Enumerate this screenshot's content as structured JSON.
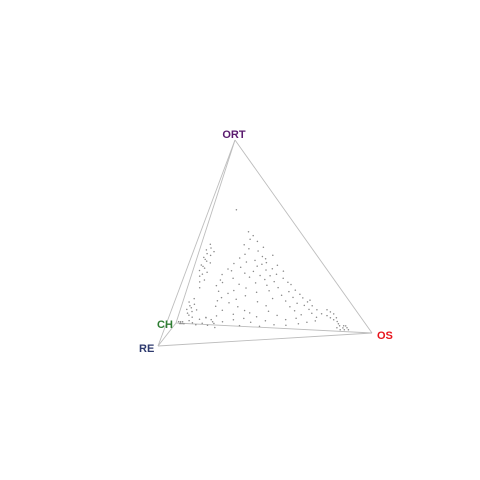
{
  "chart_data": {
    "type": "scatter",
    "subtype": "quaternary-tetrahedron",
    "vertices": [
      {
        "label": "ORT",
        "color": "#5a1a6e"
      },
      {
        "label": "OS",
        "color": "#e8141c"
      },
      {
        "label": "CH",
        "color": "#2e7d32"
      },
      {
        "label": "RE",
        "color": "#2e3a6e"
      }
    ],
    "axis_color": "#bdbdbd",
    "point_color": "#8a8a8a",
    "points": [
      [
        0.42,
        0.3,
        0.2,
        0.08
      ],
      [
        0.47,
        0.28,
        0.18,
        0.07
      ],
      [
        0.39,
        0.33,
        0.21,
        0.07
      ],
      [
        0.44,
        0.32,
        0.17,
        0.07
      ],
      [
        0.36,
        0.36,
        0.2,
        0.08
      ],
      [
        0.4,
        0.38,
        0.15,
        0.07
      ],
      [
        0.33,
        0.4,
        0.18,
        0.09
      ],
      [
        0.35,
        0.42,
        0.14,
        0.09
      ],
      [
        0.3,
        0.43,
        0.19,
        0.08
      ],
      [
        0.32,
        0.46,
        0.13,
        0.09
      ],
      [
        0.28,
        0.47,
        0.17,
        0.08
      ],
      [
        0.26,
        0.5,
        0.16,
        0.08
      ],
      [
        0.25,
        0.52,
        0.14,
        0.09
      ],
      [
        0.22,
        0.55,
        0.15,
        0.08
      ],
      [
        0.2,
        0.58,
        0.13,
        0.09
      ],
      [
        0.18,
        0.6,
        0.14,
        0.08
      ],
      [
        0.16,
        0.63,
        0.13,
        0.08
      ],
      [
        0.14,
        0.66,
        0.12,
        0.08
      ],
      [
        0.12,
        0.69,
        0.11,
        0.08
      ],
      [
        0.1,
        0.72,
        0.1,
        0.08
      ],
      [
        0.09,
        0.75,
        0.09,
        0.07
      ],
      [
        0.08,
        0.77,
        0.08,
        0.07
      ],
      [
        0.07,
        0.79,
        0.07,
        0.07
      ],
      [
        0.06,
        0.81,
        0.07,
        0.06
      ],
      [
        0.1,
        0.78,
        0.06,
        0.06
      ],
      [
        0.08,
        0.8,
        0.06,
        0.06
      ],
      [
        0.12,
        0.74,
        0.08,
        0.06
      ],
      [
        0.11,
        0.76,
        0.07,
        0.06
      ],
      [
        0.36,
        0.26,
        0.28,
        0.1
      ],
      [
        0.33,
        0.24,
        0.33,
        0.1
      ],
      [
        0.3,
        0.27,
        0.33,
        0.1
      ],
      [
        0.28,
        0.3,
        0.32,
        0.1
      ],
      [
        0.31,
        0.2,
        0.38,
        0.11
      ],
      [
        0.27,
        0.22,
        0.4,
        0.11
      ],
      [
        0.24,
        0.26,
        0.39,
        0.11
      ],
      [
        0.22,
        0.3,
        0.38,
        0.1
      ],
      [
        0.25,
        0.34,
        0.31,
        0.1
      ],
      [
        0.2,
        0.36,
        0.34,
        0.1
      ],
      [
        0.18,
        0.31,
        0.4,
        0.11
      ],
      [
        0.16,
        0.27,
        0.45,
        0.12
      ],
      [
        0.19,
        0.22,
        0.46,
        0.13
      ],
      [
        0.14,
        0.24,
        0.49,
        0.13
      ],
      [
        0.12,
        0.29,
        0.47,
        0.12
      ],
      [
        0.1,
        0.33,
        0.46,
        0.11
      ],
      [
        0.15,
        0.38,
        0.37,
        0.1
      ],
      [
        0.13,
        0.43,
        0.34,
        0.1
      ],
      [
        0.17,
        0.45,
        0.29,
        0.09
      ],
      [
        0.21,
        0.42,
        0.28,
        0.09
      ],
      [
        0.24,
        0.4,
        0.27,
        0.09
      ],
      [
        0.27,
        0.38,
        0.26,
        0.09
      ],
      [
        0.29,
        0.35,
        0.27,
        0.09
      ],
      [
        0.23,
        0.46,
        0.22,
        0.09
      ],
      [
        0.19,
        0.49,
        0.23,
        0.09
      ],
      [
        0.16,
        0.52,
        0.23,
        0.09
      ],
      [
        0.13,
        0.55,
        0.23,
        0.09
      ],
      [
        0.11,
        0.58,
        0.22,
        0.09
      ],
      [
        0.09,
        0.62,
        0.2,
        0.09
      ],
      [
        0.07,
        0.6,
        0.24,
        0.09
      ],
      [
        0.06,
        0.55,
        0.3,
        0.09
      ],
      [
        0.08,
        0.5,
        0.33,
        0.09
      ],
      [
        0.1,
        0.45,
        0.36,
        0.09
      ],
      [
        0.05,
        0.45,
        0.4,
        0.1
      ],
      [
        0.07,
        0.4,
        0.42,
        0.11
      ],
      [
        0.09,
        0.36,
        0.43,
        0.12
      ],
      [
        0.06,
        0.34,
        0.47,
        0.13
      ],
      [
        0.08,
        0.28,
        0.51,
        0.13
      ],
      [
        0.05,
        0.29,
        0.53,
        0.13
      ],
      [
        0.1,
        0.22,
        0.53,
        0.15
      ],
      [
        0.07,
        0.2,
        0.57,
        0.16
      ],
      [
        0.12,
        0.18,
        0.55,
        0.15
      ],
      [
        0.15,
        0.18,
        0.52,
        0.15
      ],
      [
        0.04,
        0.24,
        0.56,
        0.16
      ],
      [
        0.05,
        0.18,
        0.6,
        0.17
      ],
      [
        0.03,
        0.2,
        0.6,
        0.17
      ],
      [
        0.06,
        0.15,
        0.62,
        0.17
      ],
      [
        0.2,
        0.17,
        0.49,
        0.14
      ],
      [
        0.23,
        0.15,
        0.48,
        0.14
      ],
      [
        0.26,
        0.16,
        0.45,
        0.13
      ],
      [
        0.29,
        0.16,
        0.42,
        0.13
      ],
      [
        0.32,
        0.18,
        0.38,
        0.12
      ],
      [
        0.35,
        0.2,
        0.34,
        0.11
      ],
      [
        0.38,
        0.22,
        0.3,
        0.1
      ],
      [
        0.4,
        0.24,
        0.27,
        0.09
      ],
      [
        0.43,
        0.25,
        0.24,
        0.08
      ],
      [
        0.45,
        0.22,
        0.25,
        0.08
      ],
      [
        0.48,
        0.24,
        0.21,
        0.07
      ],
      [
        0.5,
        0.25,
        0.18,
        0.07
      ],
      [
        0.52,
        0.22,
        0.19,
        0.07
      ],
      [
        0.37,
        0.3,
        0.24,
        0.09
      ],
      [
        0.34,
        0.32,
        0.25,
        0.09
      ],
      [
        0.31,
        0.31,
        0.29,
        0.09
      ],
      [
        0.26,
        0.43,
        0.23,
        0.08
      ],
      [
        0.29,
        0.4,
        0.23,
        0.08
      ],
      [
        0.32,
        0.37,
        0.23,
        0.08
      ],
      [
        0.35,
        0.34,
        0.23,
        0.08
      ],
      [
        0.38,
        0.35,
        0.19,
        0.08
      ],
      [
        0.21,
        0.52,
        0.19,
        0.08
      ],
      [
        0.18,
        0.55,
        0.19,
        0.08
      ],
      [
        0.15,
        0.58,
        0.19,
        0.08
      ],
      [
        0.17,
        0.64,
        0.11,
        0.08
      ],
      [
        0.14,
        0.62,
        0.16,
        0.08
      ],
      [
        0.12,
        0.65,
        0.15,
        0.08
      ],
      [
        0.1,
        0.67,
        0.15,
        0.08
      ],
      [
        0.08,
        0.7,
        0.14,
        0.08
      ],
      [
        0.06,
        0.7,
        0.16,
        0.08
      ],
      [
        0.05,
        0.66,
        0.21,
        0.08
      ],
      [
        0.04,
        0.62,
        0.26,
        0.08
      ],
      [
        0.03,
        0.56,
        0.32,
        0.09
      ],
      [
        0.03,
        0.5,
        0.37,
        0.1
      ],
      [
        0.02,
        0.43,
        0.44,
        0.11
      ],
      [
        0.04,
        0.38,
        0.46,
        0.12
      ],
      [
        0.02,
        0.33,
        0.52,
        0.13
      ],
      [
        0.02,
        0.86,
        0.04,
        0.08
      ],
      [
        0.03,
        0.85,
        0.04,
        0.08
      ],
      [
        0.03,
        0.87,
        0.03,
        0.07
      ],
      [
        0.04,
        0.85,
        0.04,
        0.07
      ],
      [
        0.02,
        0.84,
        0.05,
        0.09
      ],
      [
        0.04,
        0.83,
        0.05,
        0.08
      ],
      [
        0.03,
        0.82,
        0.06,
        0.09
      ],
      [
        0.05,
        0.82,
        0.06,
        0.07
      ],
      [
        0.02,
        0.88,
        0.03,
        0.07
      ],
      [
        0.04,
        0.86,
        0.03,
        0.07
      ],
      [
        0.02,
        0.03,
        0.78,
        0.17
      ],
      [
        0.02,
        0.04,
        0.77,
        0.17
      ],
      [
        0.03,
        0.03,
        0.77,
        0.17
      ],
      [
        0.02,
        0.03,
        0.79,
        0.16
      ],
      [
        0.03,
        0.04,
        0.76,
        0.17
      ],
      [
        0.02,
        0.05,
        0.76,
        0.17
      ],
      [
        0.03,
        0.02,
        0.78,
        0.17
      ],
      [
        0.3,
        0.06,
        0.32,
        0.32
      ],
      [
        0.33,
        0.05,
        0.3,
        0.32
      ],
      [
        0.36,
        0.05,
        0.27,
        0.32
      ],
      [
        0.39,
        0.06,
        0.24,
        0.31
      ],
      [
        0.34,
        0.07,
        0.3,
        0.29
      ],
      [
        0.31,
        0.07,
        0.31,
        0.31
      ],
      [
        0.38,
        0.07,
        0.25,
        0.3
      ],
      [
        0.42,
        0.06,
        0.22,
        0.3
      ],
      [
        0.27,
        0.07,
        0.33,
        0.33
      ],
      [
        0.35,
        0.06,
        0.29,
        0.3
      ],
      [
        0.4,
        0.05,
        0.24,
        0.31
      ],
      [
        0.44,
        0.05,
        0.21,
        0.3
      ],
      [
        0.24,
        0.08,
        0.34,
        0.34
      ],
      [
        0.28,
        0.09,
        0.31,
        0.32
      ],
      [
        0.45,
        0.07,
        0.19,
        0.29
      ],
      [
        0.41,
        0.08,
        0.22,
        0.29
      ],
      [
        0.32,
        0.09,
        0.29,
        0.3
      ],
      [
        0.37,
        0.09,
        0.25,
        0.29
      ],
      [
        0.43,
        0.09,
        0.2,
        0.28
      ],
      [
        0.47,
        0.06,
        0.18,
        0.29
      ],
      [
        0.1,
        0.06,
        0.5,
        0.34
      ],
      [
        0.12,
        0.05,
        0.49,
        0.34
      ],
      [
        0.14,
        0.06,
        0.46,
        0.34
      ],
      [
        0.11,
        0.08,
        0.47,
        0.34
      ],
      [
        0.13,
        0.07,
        0.46,
        0.34
      ],
      [
        0.09,
        0.07,
        0.5,
        0.34
      ],
      [
        0.15,
        0.08,
        0.43,
        0.34
      ],
      [
        0.16,
        0.05,
        0.45,
        0.34
      ],
      [
        0.08,
        0.09,
        0.49,
        0.34
      ],
      [
        0.12,
        0.1,
        0.44,
        0.34
      ],
      [
        0.18,
        0.07,
        0.41,
        0.34
      ],
      [
        0.06,
        0.08,
        0.52,
        0.34
      ],
      [
        0.04,
        0.12,
        0.5,
        0.34
      ],
      [
        0.05,
        0.15,
        0.46,
        0.34
      ],
      [
        0.04,
        0.18,
        0.44,
        0.34
      ],
      [
        0.06,
        0.2,
        0.4,
        0.34
      ],
      [
        0.03,
        0.22,
        0.41,
        0.34
      ],
      [
        0.05,
        0.1,
        0.51,
        0.34
      ],
      [
        0.07,
        0.13,
        0.46,
        0.34
      ],
      [
        0.08,
        0.16,
        0.42,
        0.34
      ],
      [
        0.65,
        0.13,
        0.03,
        0.19
      ],
      [
        0.22,
        0.25,
        0.3,
        0.23
      ],
      [
        0.18,
        0.2,
        0.38,
        0.24
      ],
      [
        0.26,
        0.18,
        0.33,
        0.23
      ]
    ]
  }
}
